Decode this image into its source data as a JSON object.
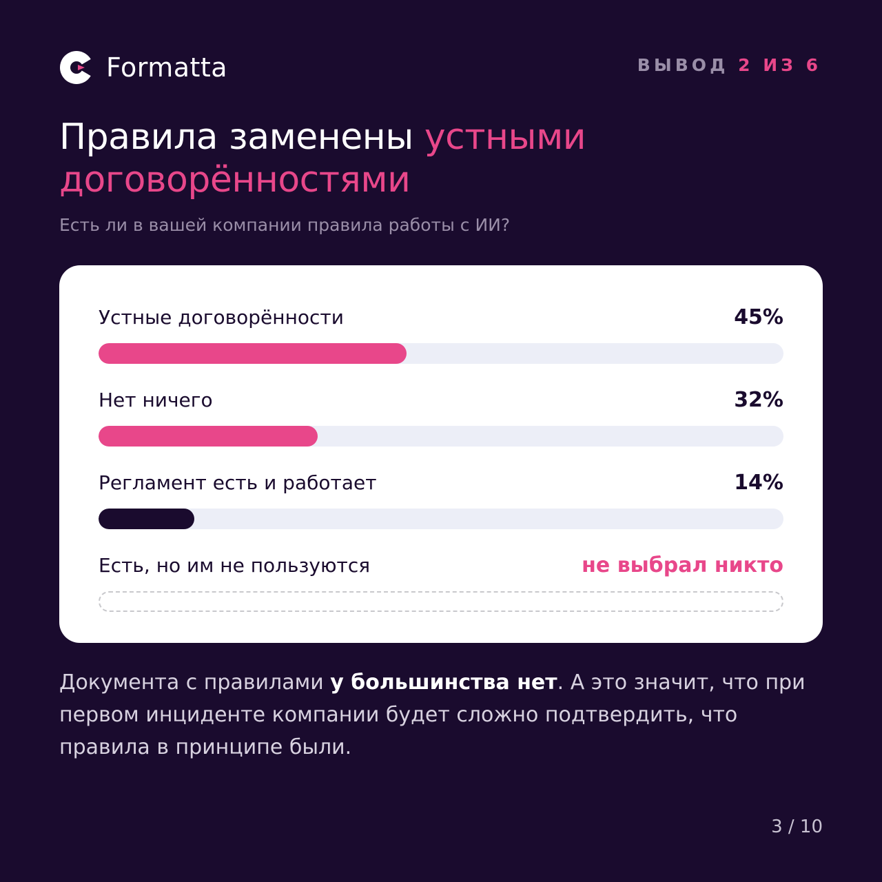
{
  "brand": {
    "name": "Formatta",
    "colors": {
      "background": "#1a0b2e",
      "accent": "#e8478a",
      "dark": "#1a0b2e",
      "track": "#eceef7",
      "muted": "#9a8ea8"
    }
  },
  "counter": {
    "prefix": "ВЫВОД",
    "current": "2",
    "separator": "ИЗ",
    "total": "6"
  },
  "title": {
    "part1": "Правила заменены ",
    "accent": "устными договорённостями"
  },
  "question": "Есть ли в вашей компании правила работы с ИИ?",
  "chart_data": {
    "type": "bar",
    "orientation": "horizontal",
    "title": "",
    "categories": [
      "Устные договорённости",
      "Нет ничего",
      "Регламент есть и работает",
      "Есть, но им не пользуются"
    ],
    "values": [
      45,
      32,
      14,
      0
    ],
    "value_labels": [
      "45%",
      "32%",
      "14%",
      "не выбрал никто"
    ],
    "bar_colors": [
      "#e8478a",
      "#e8478a",
      "#1a0b2e",
      null
    ],
    "xlim": [
      0,
      100
    ]
  },
  "conclusion": {
    "part1": "Документа с правилами ",
    "bold": "у большинства нет",
    "part2": ". А это значит, что при первом инциденте компании будет сложно подтвердить, что правила в принципе были."
  },
  "pager": "3 / 10"
}
